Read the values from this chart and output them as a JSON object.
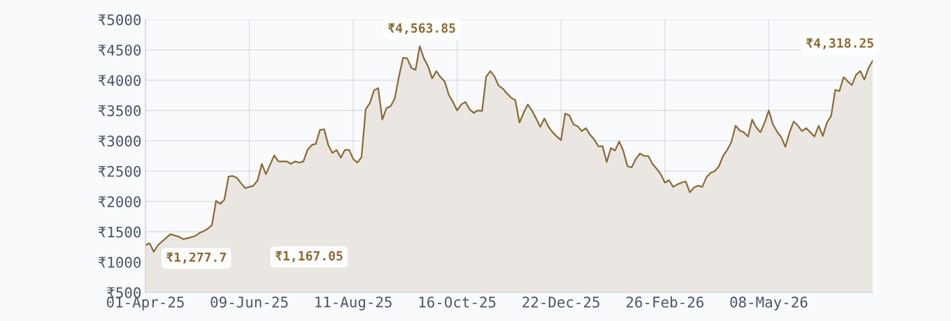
{
  "chart_data": {
    "type": "area",
    "categories": [
      "01-Apr-25",
      null,
      null,
      null,
      null,
      null,
      null,
      null,
      null,
      null,
      null,
      null,
      null,
      null,
      null,
      null,
      null,
      null,
      null,
      null,
      null,
      null,
      null,
      null,
      null,
      "09-Jun-25",
      null,
      null,
      null,
      null,
      null,
      null,
      null,
      null,
      null,
      null,
      null,
      null,
      null,
      null,
      null,
      null,
      null,
      null,
      null,
      null,
      null,
      null,
      null,
      null,
      "11-Aug-25",
      null,
      null,
      null,
      null,
      null,
      null,
      null,
      null,
      null,
      null,
      null,
      null,
      null,
      null,
      null,
      null,
      null,
      null,
      null,
      null,
      null,
      null,
      null,
      null,
      "16-Oct-25",
      null,
      null,
      null,
      null,
      null,
      null,
      null,
      null,
      null,
      null,
      null,
      null,
      null,
      null,
      null,
      null,
      null,
      null,
      null,
      null,
      null,
      null,
      null,
      null,
      "22-Dec-25",
      null,
      null,
      null,
      null,
      null,
      null,
      null,
      null,
      null,
      null,
      null,
      null,
      null,
      null,
      null,
      null,
      null,
      null,
      null,
      null,
      null,
      null,
      null,
      null,
      "26-Feb-26",
      null,
      null,
      null,
      null,
      null,
      null,
      null,
      null,
      null,
      null,
      null,
      null,
      null,
      null,
      null,
      null,
      null,
      null,
      null,
      null,
      null,
      null,
      null,
      null,
      "08-May-26",
      null,
      null,
      null,
      null,
      null,
      null,
      null,
      null,
      null,
      null,
      null,
      null,
      null,
      null,
      null,
      null,
      null,
      null,
      null,
      null,
      null,
      null,
      null,
      null,
      null
    ],
    "series": [
      {
        "color": "#8b6a35",
        "values": [
          1280,
          1310,
          1170,
          1280,
          1340,
          1400,
          1460,
          1440,
          1420,
          1380,
          1390,
          1410,
          1430,
          1480,
          1510,
          1550,
          1610,
          2010,
          1960,
          2030,
          2410,
          2420,
          2390,
          2300,
          2220,
          2240,
          2260,
          2350,
          2620,
          2450,
          2610,
          2760,
          2660,
          2660,
          2660,
          2620,
          2660,
          2640,
          2660,
          2850,
          2930,
          2950,
          3180,
          3190,
          2930,
          2800,
          2850,
          2720,
          2850,
          2850,
          2700,
          2640,
          2730,
          3520,
          3620,
          3830,
          3870,
          3350,
          3540,
          3570,
          3700,
          4060,
          4370,
          4360,
          4200,
          4170,
          4560,
          4360,
          4230,
          4030,
          4150,
          4050,
          3980,
          3760,
          3640,
          3500,
          3600,
          3640,
          3520,
          3460,
          3500,
          3490,
          4060,
          4150,
          4060,
          3910,
          3860,
          3780,
          3710,
          3670,
          3300,
          3460,
          3600,
          3500,
          3370,
          3230,
          3370,
          3230,
          3140,
          3070,
          3010,
          3450,
          3420,
          3270,
          3240,
          3160,
          3210,
          3100,
          3020,
          2910,
          2910,
          2650,
          2880,
          2840,
          2990,
          2830,
          2580,
          2560,
          2700,
          2790,
          2750,
          2750,
          2620,
          2540,
          2450,
          2310,
          2350,
          2240,
          2280,
          2310,
          2330,
          2150,
          2230,
          2260,
          2240,
          2400,
          2470,
          2500,
          2580,
          2750,
          2850,
          2980,
          3250,
          3170,
          3140,
          3070,
          3350,
          3220,
          3140,
          3300,
          3500,
          3270,
          3150,
          3060,
          2900,
          3140,
          3320,
          3250,
          3160,
          3210,
          3140,
          3070,
          3250,
          3080,
          3300,
          3410,
          3840,
          3820,
          4050,
          3980,
          3920,
          4090,
          4150,
          4010,
          4200,
          4320
        ]
      }
    ],
    "ylim": [
      500,
      5000
    ],
    "yticks": [
      {
        "value": 500,
        "label": "₹500"
      },
      {
        "value": 1000,
        "label": "₹1000"
      },
      {
        "value": 1500,
        "label": "₹1500"
      },
      {
        "value": 2000,
        "label": "₹2000"
      },
      {
        "value": 2500,
        "label": "₹2500"
      },
      {
        "value": 3000,
        "label": "₹3000"
      },
      {
        "value": 3500,
        "label": "₹3500"
      },
      {
        "value": 4000,
        "label": "₹4000"
      },
      {
        "value": 4500,
        "label": "₹4500"
      },
      {
        "value": 5000,
        "label": "₹5000"
      }
    ],
    "grid": true,
    "annotations": [
      "₹1,277.7",
      "₹1,167.05",
      "₹4,563.85",
      "₹4,318.25"
    ]
  }
}
